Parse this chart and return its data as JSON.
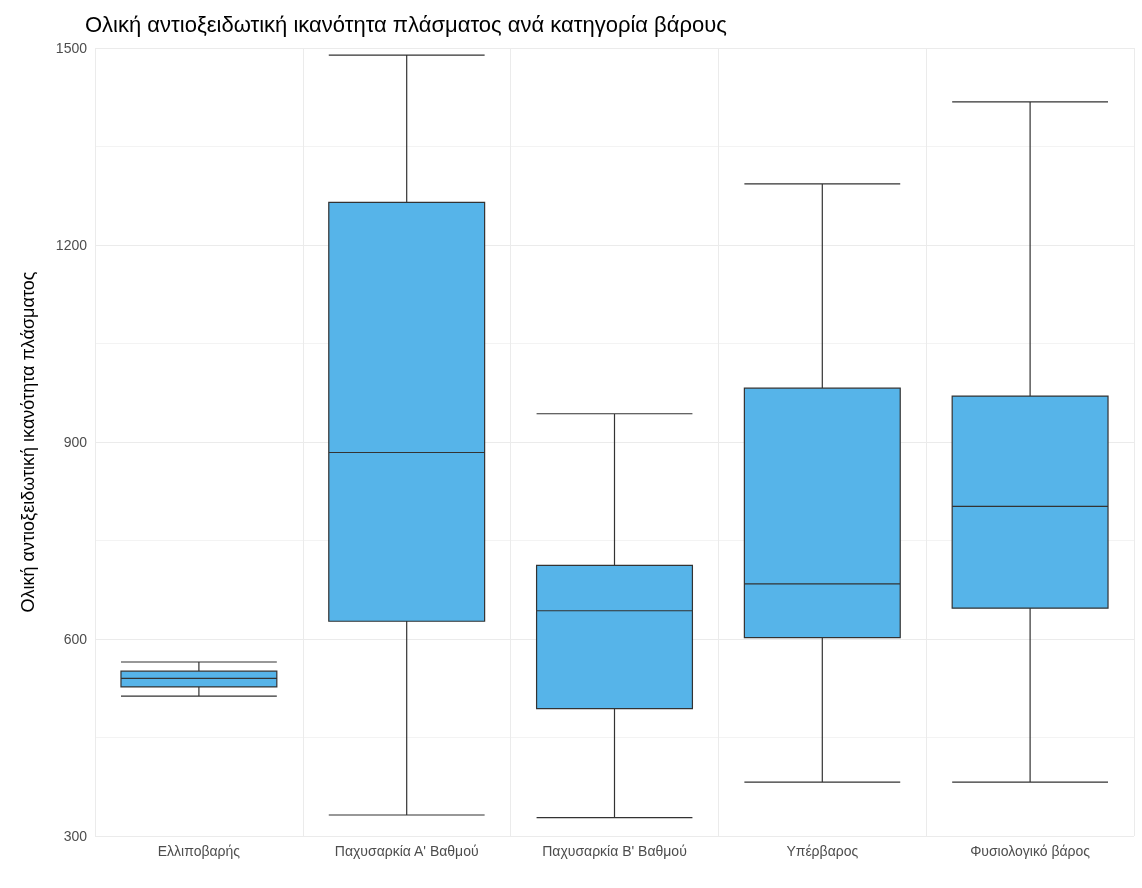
{
  "chart_data": {
    "type": "box",
    "title": "Ολική αντιοξειδωτική ικανότητα πλάσματος ανά κατηγορία βάρους",
    "ylabel": "Ολική αντιοξειδωτική ικανότητα πλάσματος",
    "categories": [
      "Ελλιποβαρής",
      "Παχυσαρκία Α' Βαθμού",
      "Παχυσαρκία Β' Βαθμού",
      "Υπέρβαρος",
      "Φυσιολογικό βάρος"
    ],
    "boxes": [
      {
        "low": 513,
        "q1": 527,
        "median": 540,
        "q3": 551,
        "high": 565
      },
      {
        "low": 332,
        "q1": 627,
        "median": 884,
        "q3": 1265,
        "high": 1489
      },
      {
        "low": 328,
        "q1": 494,
        "median": 643,
        "q3": 712,
        "high": 943
      },
      {
        "low": 382,
        "q1": 602,
        "median": 684,
        "q3": 982,
        "high": 1293
      },
      {
        "low": 382,
        "q1": 647,
        "median": 802,
        "q3": 970,
        "high": 1418
      }
    ],
    "color": "#56b4e9",
    "ylim": [
      300,
      1500
    ],
    "yticks": [
      300,
      600,
      900,
      1200,
      1500
    ],
    "grid": true
  }
}
